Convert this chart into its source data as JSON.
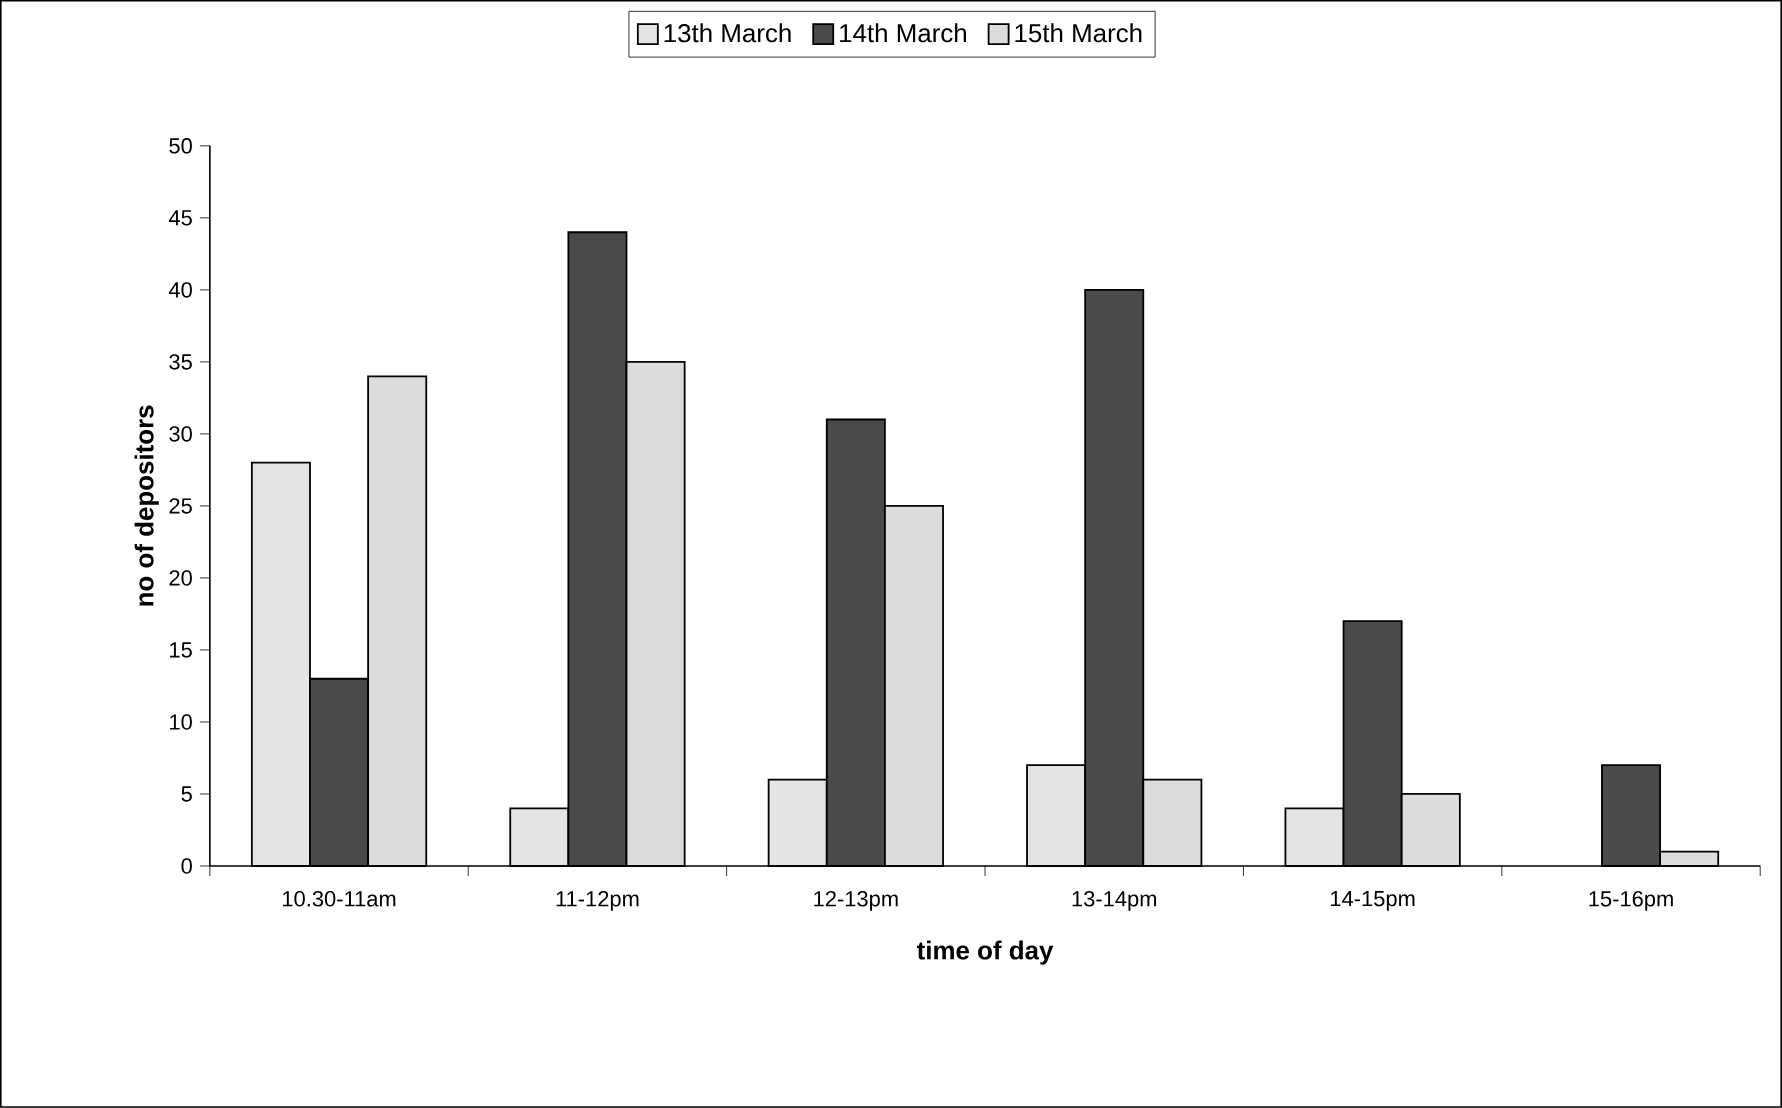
{
  "chart_data": {
    "type": "bar",
    "xlabel": "time of day",
    "ylabel": "no of depositors",
    "categories": [
      "10.30-11am",
      "11-12pm",
      "12-13pm",
      "13-14pm",
      "14-15pm",
      "15-16pm"
    ],
    "series": [
      {
        "name": "13th March",
        "color": "#e4e4e4",
        "values": [
          28,
          4,
          6,
          7,
          4,
          null
        ]
      },
      {
        "name": "14th March",
        "color": "#4a4a4a",
        "values": [
          13,
          44,
          31,
          40,
          17,
          7
        ]
      },
      {
        "name": "15th March",
        "color": "#dcdcdc",
        "values": [
          34,
          35,
          25,
          6,
          5,
          1
        ]
      }
    ],
    "ylim": [
      0,
      50
    ],
    "yticks": [
      0,
      5,
      10,
      15,
      20,
      25,
      30,
      35,
      40,
      45,
      50
    ],
    "grid": false,
    "legend": "top"
  }
}
